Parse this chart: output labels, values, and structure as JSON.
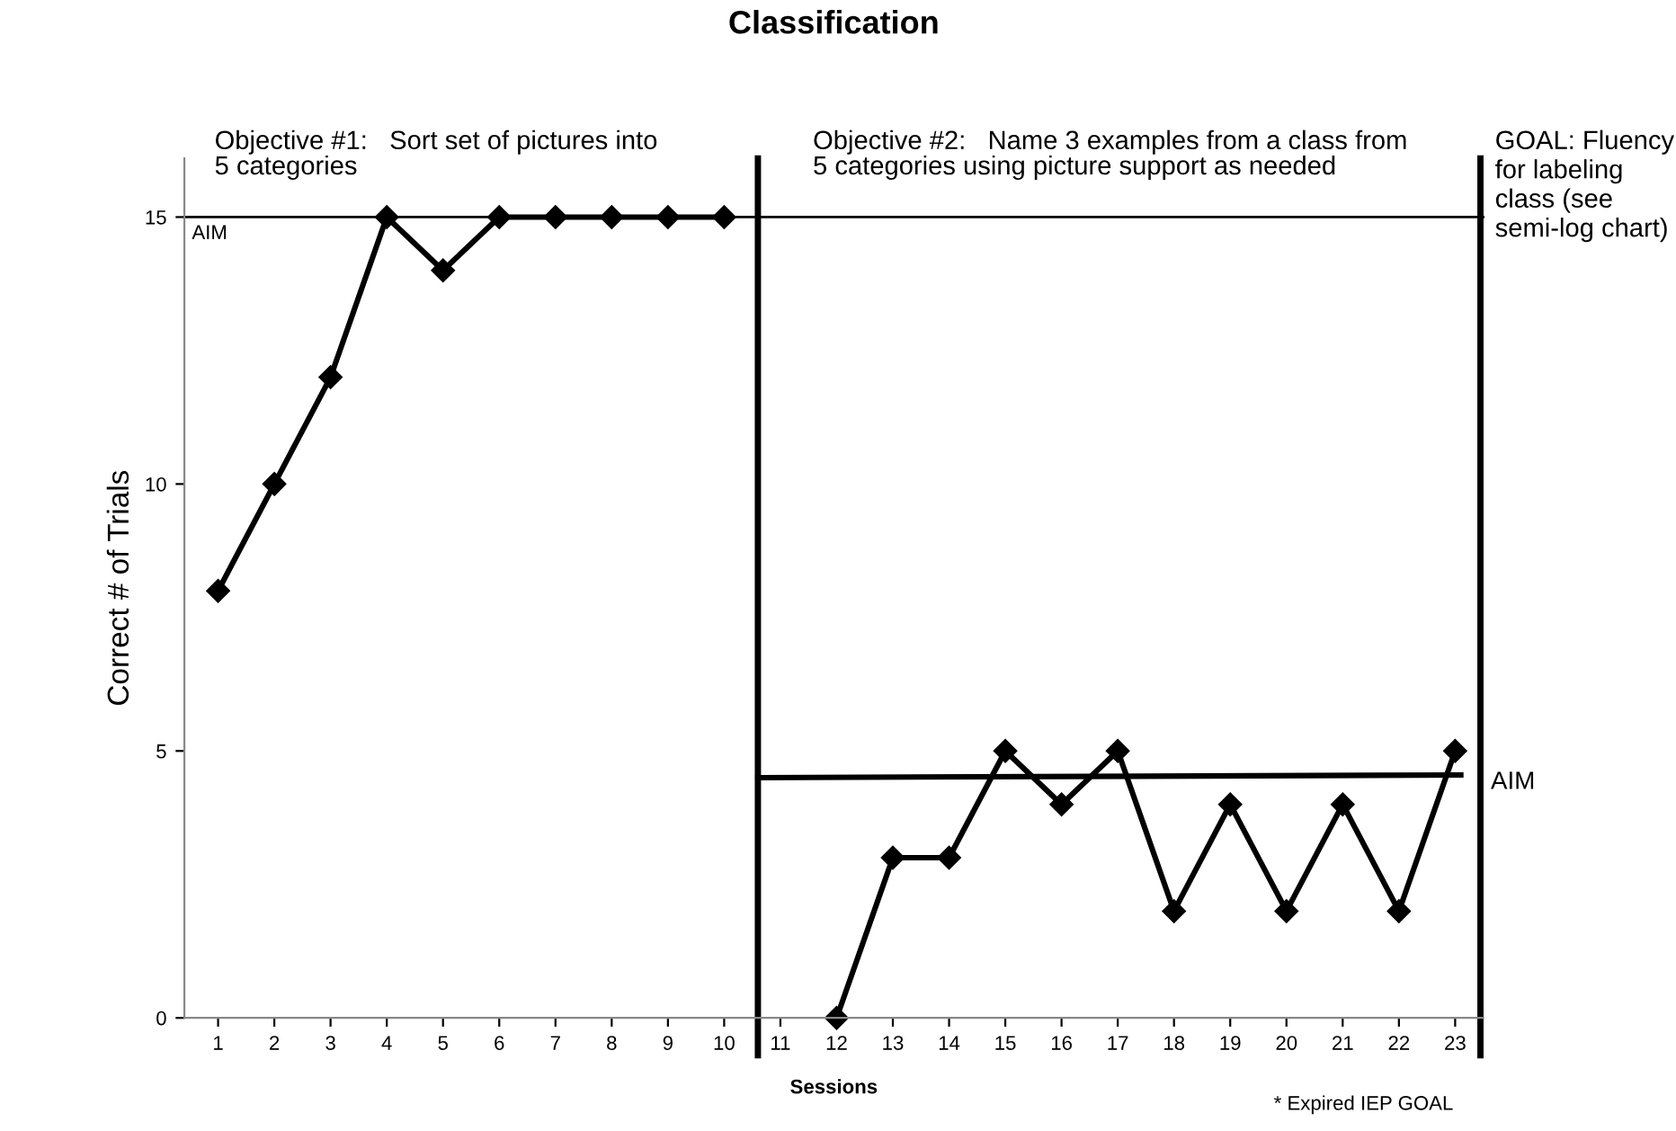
{
  "chart_data": {
    "type": "line",
    "title": "Classification",
    "xlabel": "Sessions",
    "ylabel": "Correct # of Trials",
    "xlim": [
      0.4,
      23.5
    ],
    "xticks": [
      1,
      2,
      3,
      4,
      5,
      6,
      7,
      8,
      9,
      10,
      11,
      12,
      13,
      14,
      15,
      16,
      17,
      18,
      19,
      20,
      21,
      22,
      23
    ],
    "ylim": [
      0,
      16.1
    ],
    "yticks": [
      0,
      5,
      10,
      15
    ],
    "series": [
      {
        "color": "#000000",
        "x": [
          1,
          2,
          3,
          4,
          5,
          6,
          7,
          8,
          9,
          10
        ],
        "values": [
          8,
          10,
          12,
          15,
          14,
          15,
          15,
          15,
          15,
          15
        ]
      },
      {
        "color": "#000000",
        "x": [
          12,
          13,
          14,
          15,
          16,
          17,
          18,
          19,
          20,
          21,
          22,
          23
        ],
        "values": [
          0,
          3,
          3,
          5,
          4,
          5,
          2,
          4,
          2,
          4,
          2,
          5
        ]
      },
      {
        "name": "AIM",
        "color": "#000000",
        "x": [
          10.6,
          23.1
        ],
        "values": [
          4.5,
          4.55
        ],
        "marker": "none"
      }
    ],
    "marker": "diamond",
    "line_style": "solid",
    "grid": false,
    "ref_lines": [
      {
        "axis": "y",
        "value": 15,
        "label": "AIM",
        "color": "#000000"
      },
      {
        "axis": "x",
        "value": 10.6,
        "color": "#000000"
      },
      {
        "axis": "x",
        "value": 23.45,
        "color": "#000000"
      }
    ],
    "annotations": [
      "Objective #1:   Sort set of pictures into\n5 categories",
      "Objective #2:   Name 3 examples from a class from\n5 categories using picture support as needed",
      "GOAL: Fluency\nfor labeling\nclass (see\nsemi-log chart)",
      "* Expired IEP GOAL"
    ]
  }
}
